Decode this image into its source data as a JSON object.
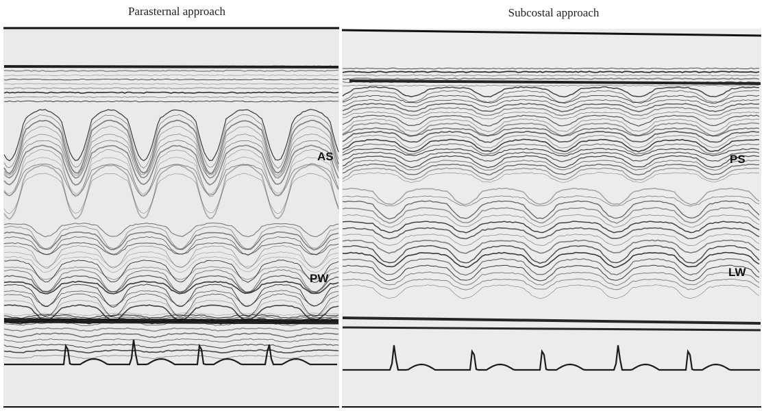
{
  "panels": [
    {
      "title": "Parasternal approach",
      "labels": [
        "AS",
        "PW"
      ]
    },
    {
      "title": "Subcostal approach",
      "labels": [
        "PS",
        "LW"
      ]
    }
  ]
}
